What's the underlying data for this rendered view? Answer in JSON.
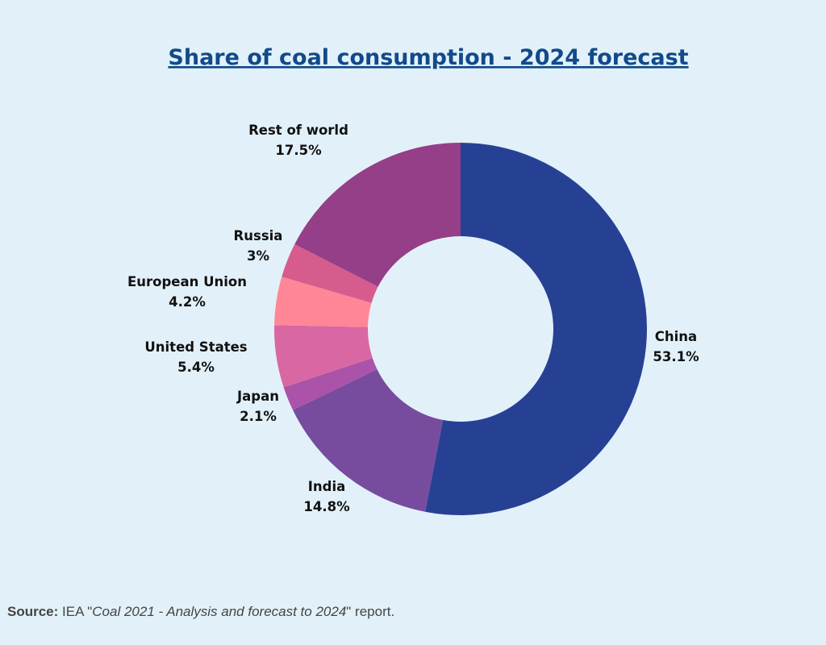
{
  "chart_data": {
    "type": "pie",
    "title": "Share of coal consumption - 2024 forecast",
    "donut": true,
    "start_angle_deg": 0,
    "direction": "clockwise",
    "slices": [
      {
        "label": "China",
        "value": 53.1,
        "value_text": "53.1%",
        "color": "#264194"
      },
      {
        "label": "India",
        "value": 14.8,
        "value_text": "14.8%",
        "color": "#774c9e"
      },
      {
        "label": "Japan",
        "value": 2.1,
        "value_text": "2.1%",
        "color": "#ab53a9"
      },
      {
        "label": "United States",
        "value": 5.4,
        "value_text": "5.4%",
        "color": "#d967a3"
      },
      {
        "label": "European Union",
        "value": 4.2,
        "value_text": "4.2%",
        "color": "#ff8696"
      },
      {
        "label": "Russia",
        "value": 3,
        "value_text": "3%",
        "color": "#d65c8e"
      },
      {
        "label": "Rest of world",
        "value": 17.5,
        "value_text": "17.5%",
        "color": "#943f87"
      }
    ]
  },
  "footer": {
    "source_label": "Source:",
    "source_prefix": "IEA \"",
    "source_title": "Coal 2021 - Analysis and forecast to 2024",
    "source_suffix": "\" report."
  },
  "colors": {
    "background": "#e2f1f9",
    "title": "#124a8a"
  }
}
